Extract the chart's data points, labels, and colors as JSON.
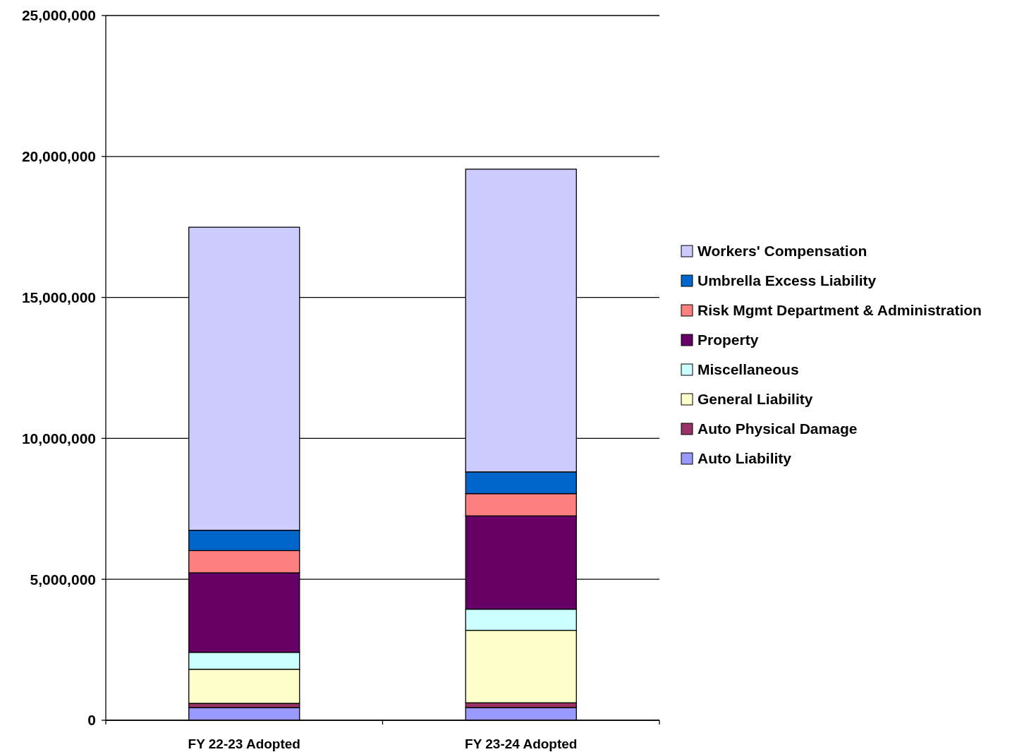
{
  "chart_data": {
    "type": "bar",
    "stacked": true,
    "categories": [
      "FY 22-23 Adopted",
      "FY 23-24 Adopted"
    ],
    "series": [
      {
        "name": "Auto Liability",
        "color": "#9999ff",
        "values": [
          450000,
          450000
        ]
      },
      {
        "name": "Auto Physical Damage",
        "color": "#993366",
        "values": [
          150000,
          170000
        ]
      },
      {
        "name": "General Liability",
        "color": "#ffffcc",
        "values": [
          1210000,
          2570000
        ]
      },
      {
        "name": "Miscellaneous",
        "color": "#ccffff",
        "values": [
          600000,
          750000
        ]
      },
      {
        "name": "Property",
        "color": "#660066",
        "values": [
          2820000,
          3310000
        ]
      },
      {
        "name": "Risk Mgmt Department & Administration",
        "color": "#ff8080",
        "values": [
          790000,
          790000
        ]
      },
      {
        "name": "Umbrella Excess Liability",
        "color": "#0066cc",
        "values": [
          720000,
          770000
        ]
      },
      {
        "name": "Workers' Compensation",
        "color": "#ccccff",
        "values": [
          10750000,
          10740000
        ]
      }
    ],
    "ylim": [
      0,
      25000000
    ],
    "yticks": [
      {
        "value": 0,
        "label": "0"
      },
      {
        "value": 5000000,
        "label": "5,000,000"
      },
      {
        "value": 10000000,
        "label": "10,000,000"
      },
      {
        "value": 15000000,
        "label": "15,000,000"
      },
      {
        "value": 20000000,
        "label": "20,000,000"
      },
      {
        "value": 25000000,
        "label": "25,000,000"
      }
    ],
    "grid": "y",
    "legend": "right"
  }
}
